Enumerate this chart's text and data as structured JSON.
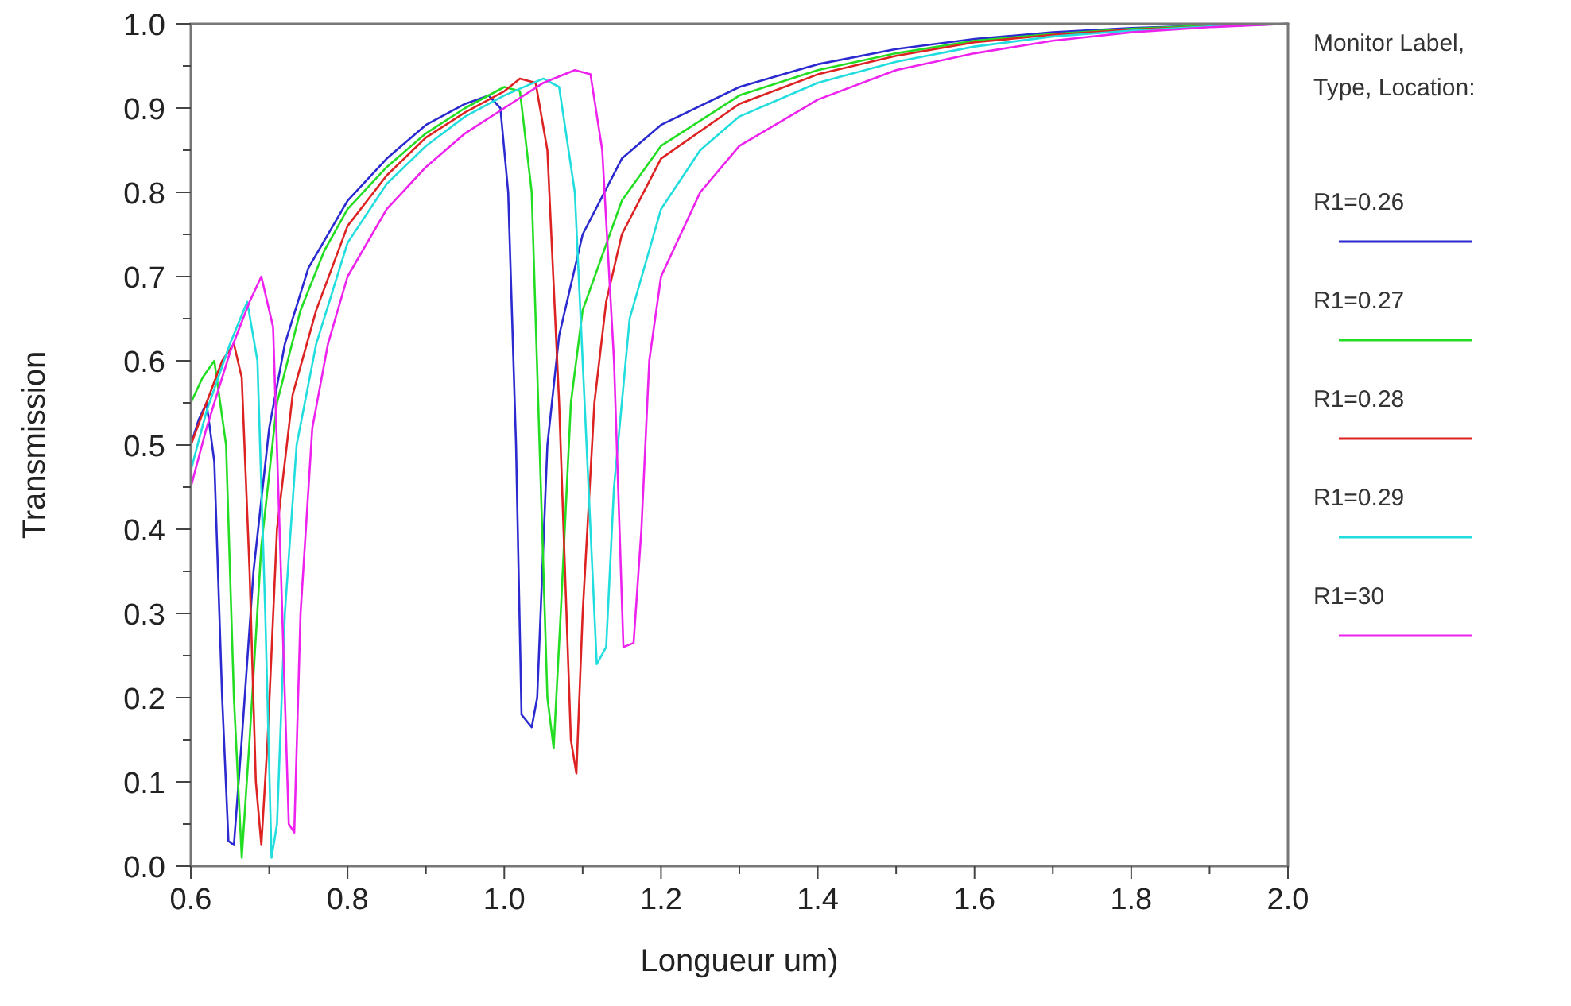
{
  "chart_data": {
    "type": "line",
    "xlabel": "Longueur um)",
    "ylabel": "Transmission",
    "legend_title": "Monitor Label, Type, Location:",
    "legend": "right",
    "grid": false,
    "marker": "none",
    "line_style": "solid",
    "xlim": [
      0.6,
      2.0
    ],
    "ylim": [
      0,
      1
    ],
    "xticks": [
      0.6,
      {
        "value": 0.7,
        "label": null
      },
      0.8,
      {
        "value": 0.9,
        "label": null
      },
      {
        "value": 1.0,
        "label": "1.0"
      },
      {
        "value": 1.1,
        "label": null
      },
      1.2,
      {
        "value": 1.3,
        "label": null
      },
      1.4,
      {
        "value": 1.5,
        "label": null
      },
      1.6,
      {
        "value": 1.7,
        "label": null
      },
      1.8,
      {
        "value": 1.9,
        "label": null
      },
      {
        "value": 2.0,
        "label": "2.0"
      }
    ],
    "yticks": [
      {
        "value": 0,
        "label": "0.0"
      },
      {
        "value": 0.05,
        "label": null
      },
      0.1,
      {
        "value": 0.15,
        "label": null
      },
      0.2,
      {
        "value": 0.25,
        "label": null
      },
      0.3,
      {
        "value": 0.35,
        "label": null
      },
      0.4,
      {
        "value": 0.45,
        "label": null
      },
      0.5,
      {
        "value": 0.55,
        "label": null
      },
      0.6,
      {
        "value": 0.65,
        "label": null
      },
      0.7,
      {
        "value": 0.75,
        "label": null
      },
      0.8,
      {
        "value": 0.85,
        "label": null
      },
      0.9,
      {
        "value": 0.95,
        "label": null
      },
      {
        "value": 1,
        "label": "1.0"
      }
    ],
    "series": [
      {
        "name": "R1=0.26",
        "color": "#2a2ad0",
        "x": [
          0.6,
          0.61,
          0.62,
          0.63,
          0.64,
          0.648,
          0.655,
          0.665,
          0.68,
          0.7,
          0.72,
          0.75,
          0.8,
          0.85,
          0.9,
          0.95,
          0.98,
          0.995,
          1.005,
          1.015,
          1.022,
          1.035,
          1.042,
          1.055,
          1.07,
          1.1,
          1.15,
          1.2,
          1.3,
          1.4,
          1.5,
          1.6,
          1.7,
          1.8,
          1.9,
          2.0
        ],
        "values": [
          0.5,
          0.53,
          0.55,
          0.48,
          0.2,
          0.03,
          0.025,
          0.15,
          0.35,
          0.52,
          0.62,
          0.71,
          0.79,
          0.84,
          0.88,
          0.905,
          0.915,
          0.9,
          0.8,
          0.5,
          0.18,
          0.165,
          0.2,
          0.5,
          0.63,
          0.75,
          0.84,
          0.88,
          0.925,
          0.952,
          0.97,
          0.982,
          0.99,
          0.995,
          0.998,
          1.0
        ]
      },
      {
        "name": "R1=0.27",
        "color": "#22dd22",
        "x": [
          0.6,
          0.615,
          0.63,
          0.645,
          0.655,
          0.665,
          0.675,
          0.69,
          0.71,
          0.74,
          0.77,
          0.8,
          0.85,
          0.9,
          0.95,
          1.0,
          1.02,
          1.035,
          1.045,
          1.055,
          1.063,
          1.072,
          1.085,
          1.1,
          1.15,
          1.2,
          1.3,
          1.4,
          1.5,
          1.6,
          1.7,
          1.8,
          1.9,
          2.0
        ],
        "values": [
          0.55,
          0.58,
          0.6,
          0.5,
          0.2,
          0.01,
          0.15,
          0.38,
          0.55,
          0.66,
          0.73,
          0.78,
          0.83,
          0.87,
          0.9,
          0.925,
          0.92,
          0.8,
          0.5,
          0.2,
          0.14,
          0.3,
          0.55,
          0.66,
          0.79,
          0.855,
          0.915,
          0.945,
          0.965,
          0.98,
          0.988,
          0.994,
          0.998,
          1.0
        ]
      },
      {
        "name": "R1=0.28",
        "color": "#dd2222",
        "x": [
          0.6,
          0.62,
          0.64,
          0.655,
          0.665,
          0.675,
          0.683,
          0.69,
          0.698,
          0.71,
          0.73,
          0.76,
          0.8,
          0.85,
          0.9,
          0.95,
          1.0,
          1.02,
          1.04,
          1.055,
          1.07,
          1.085,
          1.092,
          1.1,
          1.115,
          1.13,
          1.15,
          1.2,
          1.3,
          1.4,
          1.5,
          1.6,
          1.7,
          1.8,
          1.9,
          2.0
        ],
        "values": [
          0.5,
          0.55,
          0.6,
          0.62,
          0.58,
          0.35,
          0.1,
          0.025,
          0.15,
          0.4,
          0.56,
          0.66,
          0.76,
          0.82,
          0.865,
          0.895,
          0.92,
          0.935,
          0.93,
          0.85,
          0.55,
          0.15,
          0.11,
          0.3,
          0.55,
          0.67,
          0.75,
          0.84,
          0.905,
          0.94,
          0.962,
          0.978,
          0.987,
          0.993,
          0.997,
          1.0
        ]
      },
      {
        "name": "R1=0.29",
        "color": "#22dddd",
        "x": [
          0.6,
          0.62,
          0.65,
          0.672,
          0.685,
          0.695,
          0.703,
          0.71,
          0.72,
          0.735,
          0.76,
          0.8,
          0.85,
          0.9,
          0.95,
          1.0,
          1.05,
          1.07,
          1.09,
          1.105,
          1.118,
          1.13,
          1.14,
          1.16,
          1.2,
          1.25,
          1.3,
          1.4,
          1.5,
          1.6,
          1.7,
          1.8,
          1.9,
          2.0
        ],
        "values": [
          0.47,
          0.54,
          0.62,
          0.67,
          0.6,
          0.3,
          0.01,
          0.05,
          0.3,
          0.5,
          0.62,
          0.74,
          0.81,
          0.855,
          0.89,
          0.915,
          0.935,
          0.925,
          0.8,
          0.5,
          0.24,
          0.26,
          0.45,
          0.65,
          0.78,
          0.85,
          0.89,
          0.93,
          0.955,
          0.973,
          0.985,
          0.992,
          0.997,
          1.0
        ]
      },
      {
        "name": "R1=30",
        "color": "#ee22ee",
        "x": [
          0.6,
          0.62,
          0.65,
          0.675,
          0.69,
          0.705,
          0.715,
          0.725,
          0.732,
          0.74,
          0.755,
          0.775,
          0.8,
          0.85,
          0.9,
          0.95,
          1.0,
          1.05,
          1.09,
          1.11,
          1.125,
          1.14,
          1.152,
          1.165,
          1.175,
          1.185,
          1.2,
          1.25,
          1.3,
          1.4,
          1.5,
          1.6,
          1.7,
          1.8,
          1.9,
          2.0
        ],
        "values": [
          0.45,
          0.52,
          0.61,
          0.67,
          0.7,
          0.64,
          0.35,
          0.05,
          0.04,
          0.3,
          0.52,
          0.62,
          0.7,
          0.78,
          0.83,
          0.87,
          0.9,
          0.93,
          0.945,
          0.94,
          0.85,
          0.6,
          0.26,
          0.265,
          0.4,
          0.6,
          0.7,
          0.8,
          0.855,
          0.91,
          0.945,
          0.965,
          0.98,
          0.99,
          0.996,
          1.0
        ]
      }
    ]
  }
}
